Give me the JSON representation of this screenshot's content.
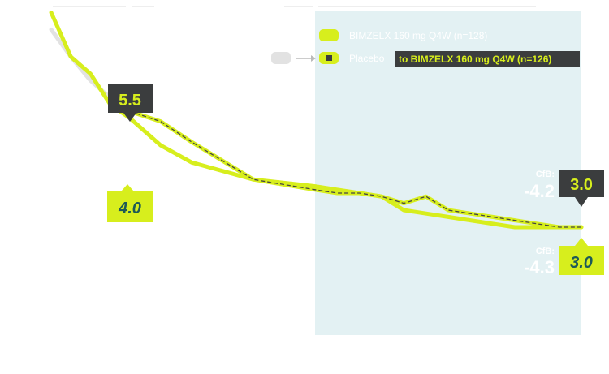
{
  "colors": {
    "bimzelx": "#d7ee1d",
    "placebo": "#e2e2e2",
    "dash": "#444444",
    "panel": "#e3f1f3",
    "callout_dark": "#3b3d3e",
    "callout_text_on_dark": "#d7ee1d",
    "callout_text_on_lime": "#1e5a57"
  },
  "legend": {
    "bimzelx_label": "BIMZELX 160 mg Q4W (n=128)",
    "placebo_label": "Placebo",
    "switch_label": "to BIMZELX 160 mg Q4W (n=126)"
  },
  "callouts": {
    "placebo_start": "5.5",
    "bimzelx_start": "4.0",
    "switch_end": "3.0",
    "bimzelx_end": "3.0"
  },
  "cfb": {
    "switch_label": "CfB:",
    "switch_value": "-4.2",
    "bimzelx_label": "CfB:",
    "bimzelx_value": "-4.3"
  },
  "chart_data": {
    "type": "line",
    "x": [
      0,
      1,
      2,
      3,
      4,
      6,
      8,
      12,
      16,
      20,
      24,
      28,
      32,
      36,
      40,
      44,
      48,
      52,
      56,
      60,
      64
    ],
    "series": [
      {
        "name": "BIMZELX 160 mg Q4W (n=128)",
        "values": [
          9.3,
          8.0,
          7.5,
          6.6,
          6.2,
          5.4,
          4.9,
          4.4,
          4.2,
          4.1,
          4.0,
          3.9,
          3.5,
          3.4,
          3.3,
          3.2,
          3.1,
          3.0,
          3.0,
          3.0,
          3.0
        ]
      },
      {
        "name": "Placebo to BIMZELX 160 mg Q4W (n=126)",
        "values": [
          8.8,
          8.0,
          7.3,
          6.8,
          6.4,
          6.1,
          5.5,
          4.4,
          4.1,
          4.0,
          4.0,
          3.9,
          3.7,
          3.9,
          3.5,
          3.4,
          3.3,
          3.2,
          3.1,
          3.0,
          3.0
        ]
      }
    ]
  }
}
